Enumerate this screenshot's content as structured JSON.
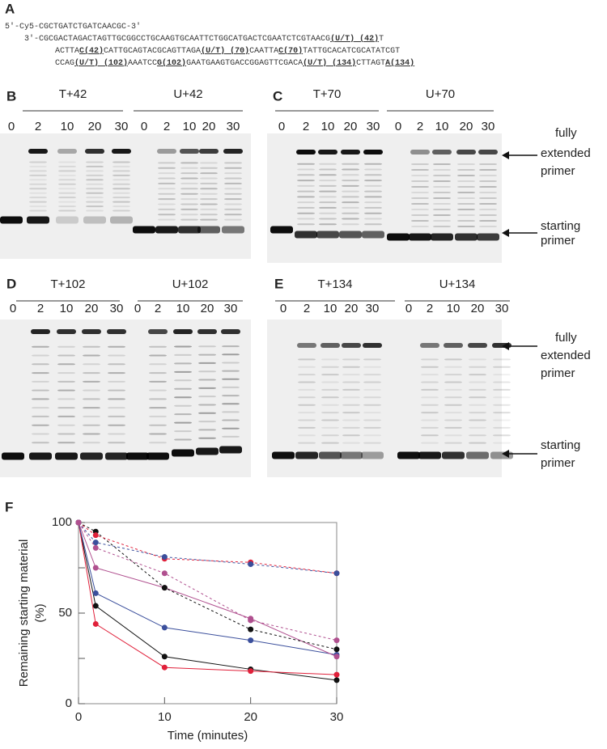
{
  "panel_a": {
    "label": "A",
    "lines": [
      [
        {
          "t": "5'-Cy5-CGCTGATCTGATCAACGC-3'",
          "b": false
        }
      ],
      [
        {
          "t": "3'-CGCGACTAGACTAGTTGCGGCCTGCAAGTGCAATTCTGGCATGACTCGAATCTCGTAACG",
          "b": false
        },
        {
          "t": "(U/T) (42)",
          "b": true
        },
        {
          "t": "T",
          "b": false
        }
      ],
      [
        {
          "t": "ACTTA",
          "b": false
        },
        {
          "t": "C(42)",
          "b": true
        },
        {
          "t": "CATTGCAGTACGCAGTTAGA",
          "b": false
        },
        {
          "t": "(U/T) (70)",
          "b": true
        },
        {
          "t": "CAATTA",
          "b": false
        },
        {
          "t": "C(70)",
          "b": true
        },
        {
          "t": "TATTGCACATCGCATATCGT",
          "b": false
        }
      ],
      [
        {
          "t": "CCAG",
          "b": false
        },
        {
          "t": "(U/T) (102)",
          "b": true
        },
        {
          "t": "AAATCC",
          "b": false
        },
        {
          "t": "G(102)",
          "b": true
        },
        {
          "t": "GAATGAAGTGACCGGAGTTCGACA",
          "b": false
        },
        {
          "t": "(U/T) (134)",
          "b": true
        },
        {
          "t": "CTTAGT",
          "b": false
        },
        {
          "t": "A(134)",
          "b": true
        }
      ]
    ]
  },
  "gels": [
    {
      "label": "B",
      "groups": [
        {
          "name": "T+42",
          "lanes": [
            "0",
            "2",
            "10",
            "20",
            "30"
          ]
        },
        {
          "name": "U+42",
          "lanes": [
            "0",
            "2",
            "10",
            "20",
            "30"
          ]
        }
      ]
    },
    {
      "label": "C",
      "groups": [
        {
          "name": "T+70",
          "lanes": [
            "0",
            "2",
            "10",
            "20",
            "30"
          ]
        },
        {
          "name": "U+70",
          "lanes": [
            "0",
            "2",
            "10",
            "20",
            "30"
          ]
        }
      ],
      "annotations": [
        "fully extended primer",
        "starting primer"
      ]
    },
    {
      "label": "D",
      "groups": [
        {
          "name": "T+102",
          "lanes": [
            "0",
            "2",
            "10",
            "20",
            "30"
          ]
        },
        {
          "name": "U+102",
          "lanes": [
            "0",
            "2",
            "10",
            "20",
            "30"
          ]
        }
      ]
    },
    {
      "label": "E",
      "groups": [
        {
          "name": "T+134",
          "lanes": [
            "0",
            "2",
            "10",
            "20",
            "30"
          ]
        },
        {
          "name": "U+134",
          "lanes": [
            "0",
            "2",
            "10",
            "20",
            "30"
          ]
        }
      ],
      "annotations": [
        "fully extended primer",
        "starting primer"
      ]
    }
  ],
  "panel_f_label": "F",
  "chart_data": {
    "type": "line",
    "x_label": "Time (minutes)",
    "y_label": [
      "Remaining starting material",
      "(%)"
    ],
    "x": [
      0,
      2,
      10,
      20,
      30
    ],
    "xlim": [
      0,
      30
    ],
    "xticks": [
      0,
      10,
      20,
      30
    ],
    "ylim": [
      0,
      100
    ],
    "yticks": [
      0,
      50,
      100
    ],
    "series": [
      {
        "color": "#111111",
        "dashed": false,
        "values": [
          100,
          54,
          26,
          19,
          13
        ]
      },
      {
        "color": "#e0203a",
        "dashed": false,
        "values": [
          100,
          44,
          20,
          18,
          16
        ]
      },
      {
        "color": "#3b4f9c",
        "dashed": false,
        "values": [
          100,
          61,
          42,
          35,
          27
        ]
      },
      {
        "color": "#b0508f",
        "dashed": false,
        "values": [
          100,
          75,
          64,
          47,
          26
        ]
      },
      {
        "color": "#111111",
        "dashed": true,
        "values": [
          100,
          95,
          64,
          41,
          30
        ]
      },
      {
        "color": "#e0203a",
        "dashed": true,
        "values": [
          100,
          93,
          80,
          78,
          72
        ]
      },
      {
        "color": "#3b4f9c",
        "dashed": true,
        "values": [
          100,
          89,
          81,
          77,
          72
        ]
      },
      {
        "color": "#b0508f",
        "dashed": true,
        "values": [
          100,
          86,
          72,
          46,
          35
        ]
      }
    ]
  }
}
